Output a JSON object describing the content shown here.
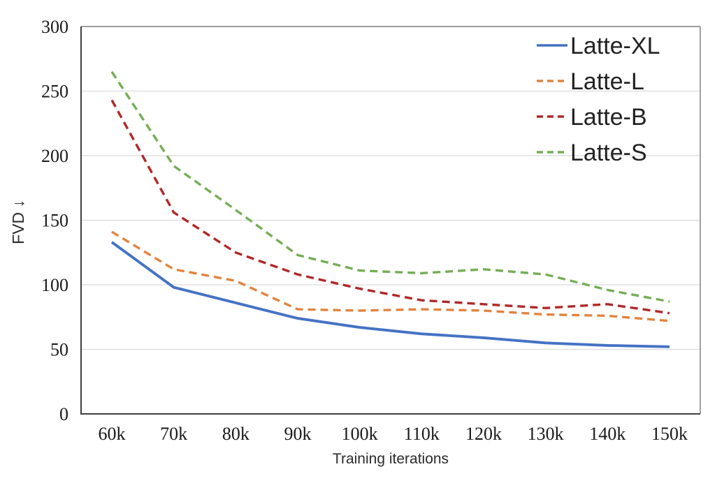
{
  "chart_data": {
    "type": "line",
    "title": "",
    "xlabel": "Training iterations",
    "ylabel": "FVD ↓",
    "categories": [
      "60k",
      "70k",
      "80k",
      "90k",
      "100k",
      "110k",
      "120k",
      "130k",
      "140k",
      "150k"
    ],
    "series": [
      {
        "name": "Latte-XL",
        "color": "#4472C4",
        "line_style": "solid",
        "values": [
          133,
          98,
          86,
          74,
          67,
          62,
          59,
          55,
          53,
          52
        ]
      },
      {
        "name": "Latte-L",
        "color": "#E2833E",
        "line_style": "dashed",
        "values": [
          141,
          112,
          103,
          81,
          80,
          81,
          80,
          77,
          76,
          72
        ]
      },
      {
        "name": "Latte-B",
        "color": "#B02828",
        "line_style": "dashed",
        "values": [
          243,
          156,
          125,
          108,
          97,
          88,
          85,
          82,
          85,
          78
        ]
      },
      {
        "name": "Latte-S",
        "color": "#76AD56",
        "line_style": "dashed",
        "values": [
          265,
          192,
          158,
          123,
          111,
          109,
          112,
          108,
          96,
          87
        ]
      }
    ],
    "ylim": [
      0,
      300
    ],
    "yticks": [
      0,
      50,
      100,
      150,
      200,
      250,
      300
    ],
    "grid": true,
    "legend_position": "top-right",
    "colors": {
      "gridline": "#DADADA",
      "outer_border": "#8F8F8F",
      "axis_line": "#3F3F3F",
      "tick_text": "#1A1A1A"
    }
  }
}
